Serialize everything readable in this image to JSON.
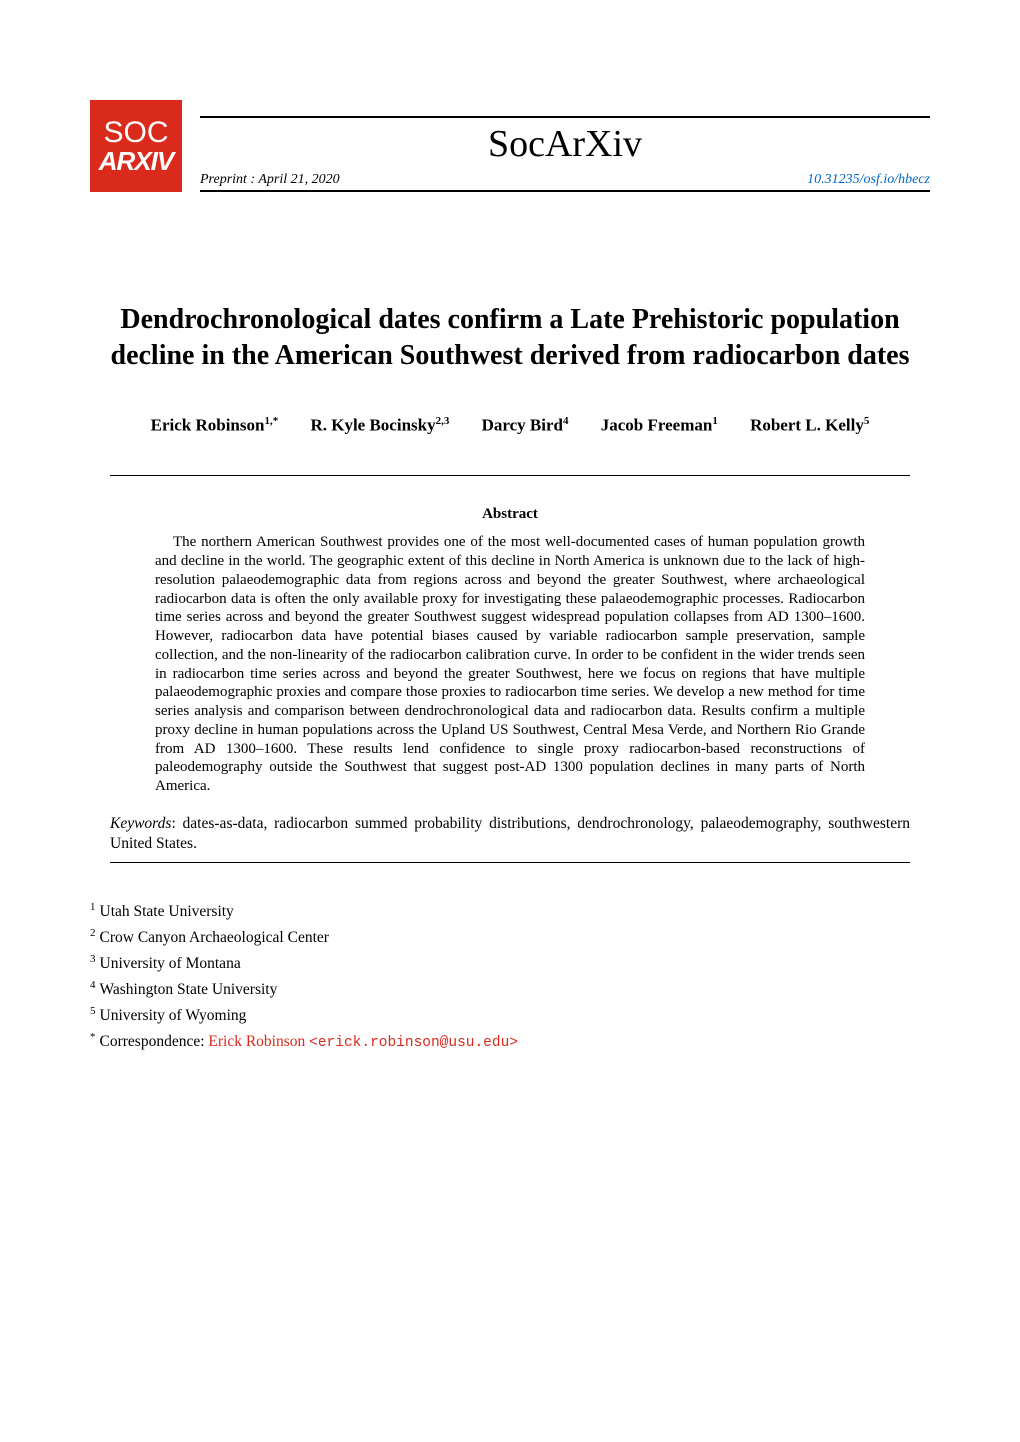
{
  "header": {
    "logo_top": "SOC",
    "logo_bottom": "ARXIV",
    "journal_title": "SocArXiv",
    "preprint_label": "Preprint : April 21, 2020",
    "doi": "10.31235/osf.io/hbecz"
  },
  "title": "Dendrochronological dates confirm a Late Prehistoric population decline in the American Southwest derived from radiocarbon dates",
  "authors": [
    {
      "name": "Erick Robinson",
      "affil": "1,*"
    },
    {
      "name": "R. Kyle Bocinsky",
      "affil": "2,3"
    },
    {
      "name": "Darcy Bird",
      "affil": "4"
    },
    {
      "name": "Jacob Freeman",
      "affil": "1"
    },
    {
      "name": "Robert L. Kelly",
      "affil": "5"
    }
  ],
  "abstract_heading": "Abstract",
  "abstract": "The northern American Southwest provides one of the most well-documented cases of human population growth and decline in the world. The geographic extent of this decline in North America is unknown due to the lack of high-resolution palaeodemographic data from regions across and beyond the greater Southwest, where archaeological radiocarbon data is often the only available proxy for investigating these palaeodemographic processes. Radiocarbon time series across and beyond the greater Southwest suggest widespread population collapses from AD 1300–1600. However, radiocarbon data have potential biases caused by variable radiocarbon sample preservation, sample collection, and the non-linearity of the radiocarbon calibration curve. In order to be confident in the wider trends seen in radiocarbon time series across and beyond the greater Southwest, here we focus on regions that have multiple palaeodemographic proxies and compare those proxies to radiocarbon time series. We develop a new method for time series analysis and comparison between dendrochronological data and radiocarbon data. Results confirm a multiple proxy decline in human populations across the Upland US Southwest, Central Mesa Verde, and Northern Rio Grande from AD 1300–1600. These results lend confidence to single proxy radiocarbon-based reconstructions of paleodemography outside the Southwest that suggest post-AD 1300 population declines in many parts of North America.",
  "keywords_label": "Keywords",
  "keywords": ": dates-as-data, radiocarbon summed probability distributions, dendrochronology, palaeodemography, southwestern United States.",
  "affiliations": [
    {
      "num": "1",
      "text": "Utah State University"
    },
    {
      "num": "2",
      "text": "Crow Canyon Archaeological Center"
    },
    {
      "num": "3",
      "text": "University of Montana"
    },
    {
      "num": "4",
      "text": "Washington State University"
    },
    {
      "num": "5",
      "text": "University of Wyoming"
    }
  ],
  "correspondence": {
    "marker": "*",
    "label": "Correspondence: ",
    "name": "Erick Robinson ",
    "email": "<erick.robinson@usu.edu>"
  },
  "colors": {
    "logo_bg": "#d92a1c",
    "link_blue": "#0066cc",
    "link_red": "#d92a1c",
    "text": "#000000",
    "background": "#ffffff"
  },
  "typography": {
    "body_family": "Times New Roman",
    "mono_family": "Courier New",
    "title_size_pt": 28,
    "journal_size_pt": 38,
    "abstract_size_pt": 15,
    "authors_size_pt": 17
  }
}
